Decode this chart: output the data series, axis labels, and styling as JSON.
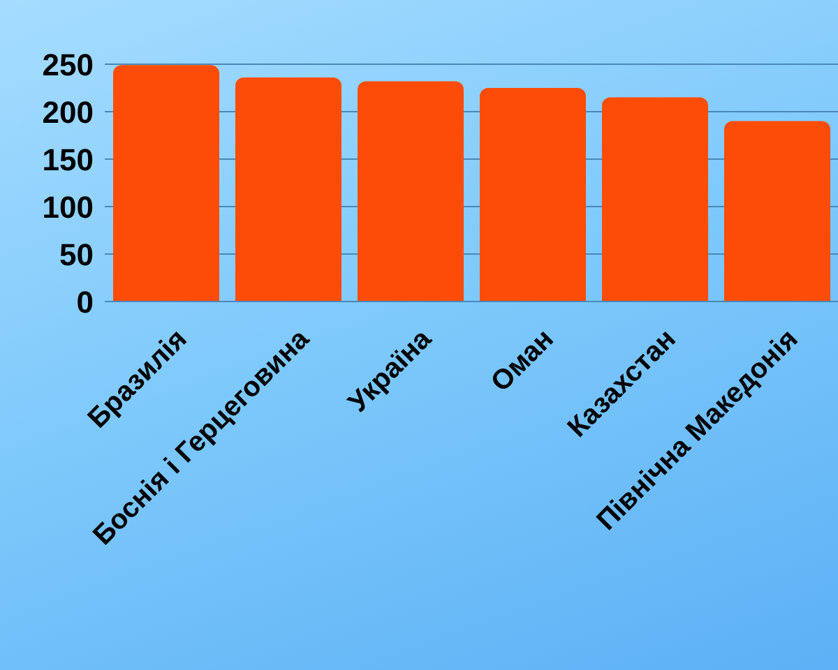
{
  "chart_data": {
    "type": "bar",
    "categories": [
      "Бразилія",
      "Боснія і Герцеговина",
      "Україна",
      "Оман",
      "Казахстан",
      "Північна Македонія"
    ],
    "values": [
      249,
      236,
      232,
      225,
      215,
      190
    ],
    "color": "#fc4c08",
    "ylim": [
      0,
      250
    ],
    "yticks": [
      0,
      50,
      100,
      150,
      200,
      250
    ],
    "grid": "y"
  }
}
